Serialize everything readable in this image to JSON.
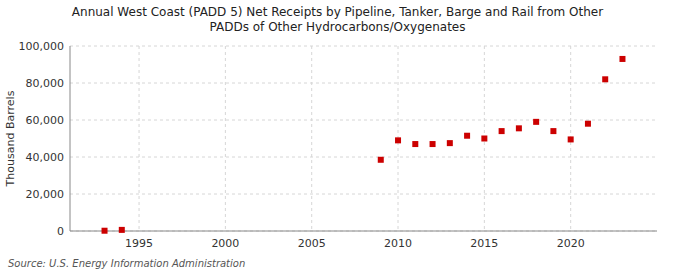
{
  "chart_data": {
    "type": "scatter",
    "title": "Annual West Coast (PADD 5) Net Receipts by Pipeline, Tanker, Barge and Rail from Other\nPADDs of Other Hydrocarbons/Oxygenates",
    "y_label": "Thousand Barrels",
    "annotations": [
      "Source: U.S. Energy Information Administration"
    ],
    "x": [
      1993,
      1994,
      2009,
      2010,
      2011,
      2012,
      2013,
      2014,
      2015,
      2016,
      2017,
      2018,
      2019,
      2020,
      2021,
      2022,
      2023
    ],
    "values": [
      150,
      600,
      38500,
      49000,
      47000,
      47000,
      47500,
      51500,
      50000,
      54000,
      55500,
      59000,
      54000,
      49500,
      58000,
      82000,
      93000
    ],
    "color": "#cc0000",
    "marker": "square",
    "xlim": [
      1991,
      2025
    ],
    "ylim": [
      0,
      100000
    ],
    "xticks": [
      1995,
      2000,
      2005,
      2010,
      2015,
      2020
    ],
    "yticks": [
      0,
      {
        "value": 20000,
        "label": "20,000"
      },
      {
        "value": 40000,
        "label": "40,000"
      },
      {
        "value": 60000,
        "label": "60,000"
      },
      {
        "value": 80000,
        "label": "80,000"
      },
      {
        "value": 100000,
        "label": "100,000"
      }
    ],
    "grid": true
  }
}
